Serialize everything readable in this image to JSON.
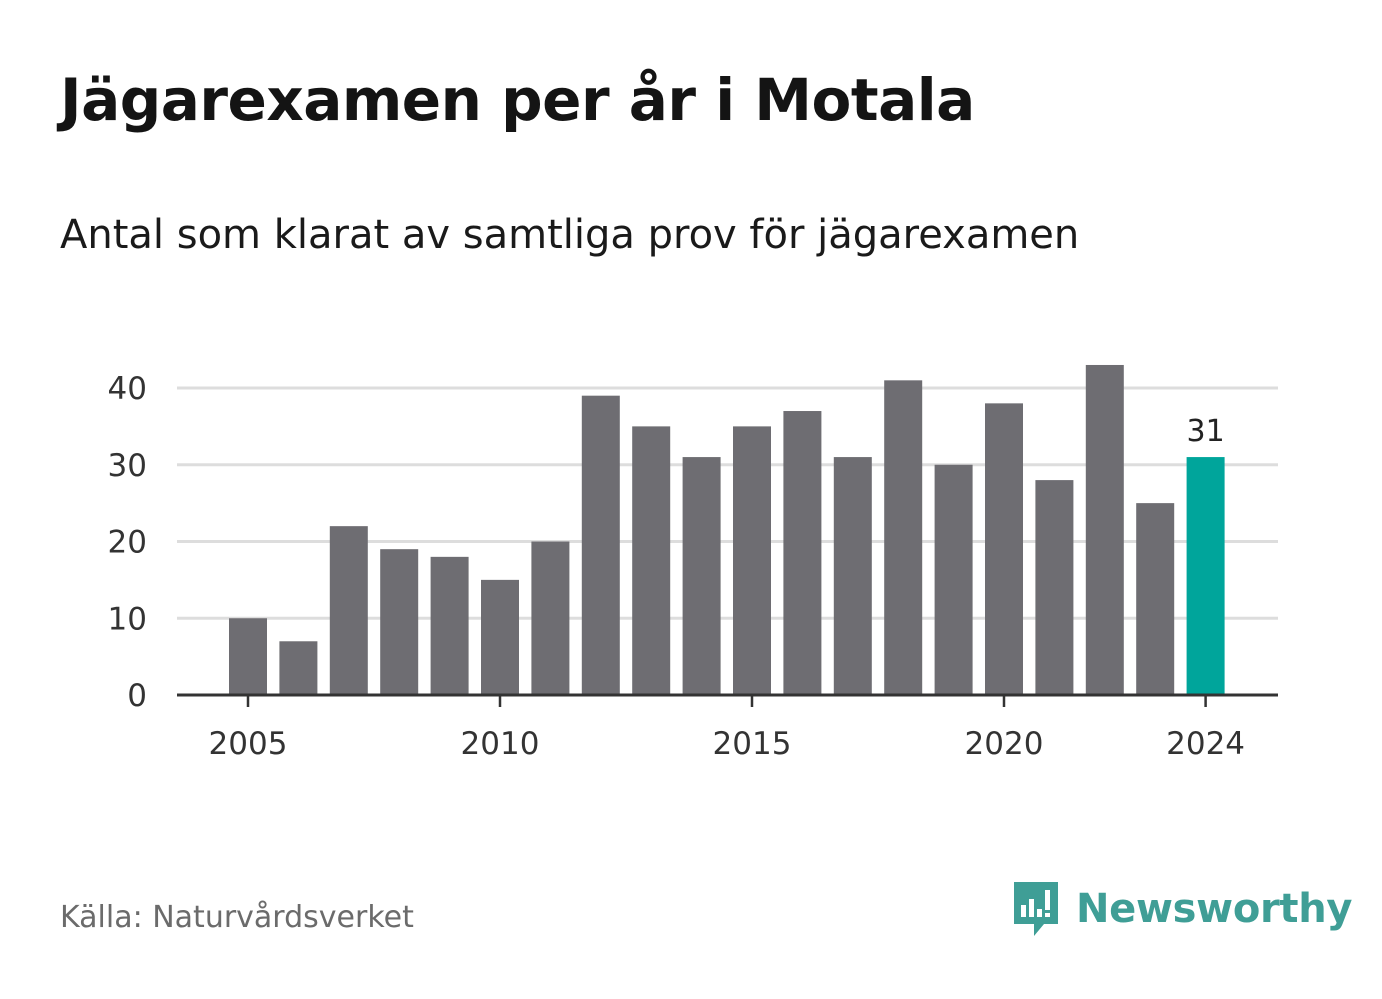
{
  "title": "Jägarexamen per år i Motala",
  "subtitle": "Antal som klarat av samtliga prov för jägarexamen",
  "source": "Källa: Naturvårdsverket",
  "brand": {
    "name": "Newsworthy",
    "icon": "newsworthy-logo-icon",
    "color": "#3f9e96"
  },
  "colors": {
    "bar": "#6e6d72",
    "highlight": "#00a59b",
    "grid": "#dddddd",
    "axis": "#333333"
  },
  "chart_data": {
    "type": "bar",
    "categories": [
      "2005",
      "2006",
      "2007",
      "2008",
      "2009",
      "2010",
      "2011",
      "2012",
      "2013",
      "2014",
      "2015",
      "2016",
      "2017",
      "2018",
      "2019",
      "2020",
      "2021",
      "2022",
      "2023",
      "2024"
    ],
    "values": [
      10,
      7,
      22,
      19,
      18,
      15,
      20,
      39,
      35,
      31,
      35,
      37,
      31,
      41,
      30,
      38,
      28,
      43,
      25,
      31
    ],
    "x_tick_labels": [
      "2005",
      "2010",
      "2015",
      "2020",
      "2024"
    ],
    "y_ticks": [
      0,
      10,
      20,
      30,
      40
    ],
    "ylim": [
      0,
      43
    ],
    "highlight": {
      "category": "2024",
      "label": "31"
    },
    "title": "Jägarexamen per år i Motala",
    "xlabel": "",
    "ylabel": "",
    "grid": true,
    "legend": "none"
  }
}
